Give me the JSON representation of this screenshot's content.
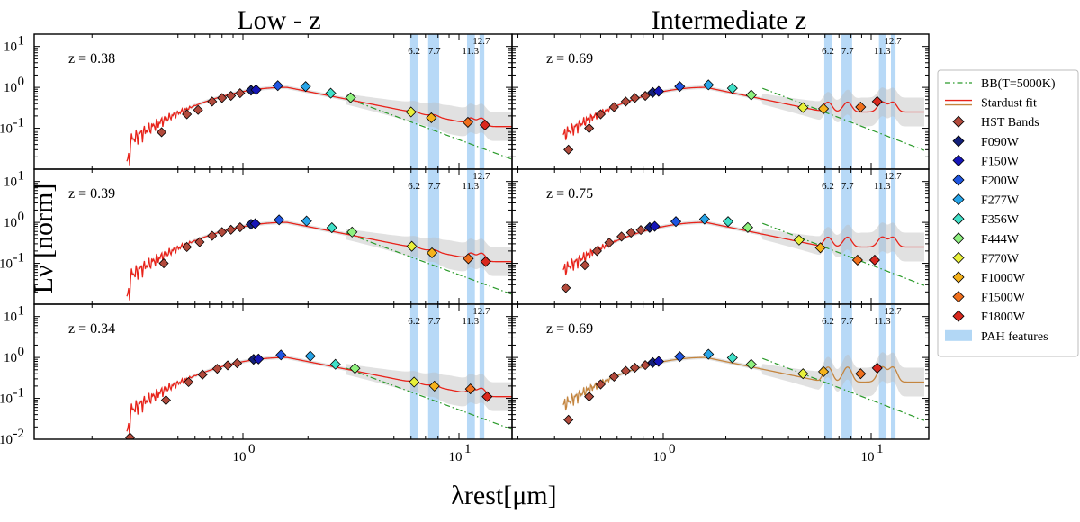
{
  "chart_data": {
    "type": "line",
    "x_scale": "log",
    "y_scale": "log",
    "xlim": [
      0.2,
      18
    ],
    "ylim": [
      0.01,
      20
    ],
    "column_titles": [
      "Low - z",
      "Intermediate z"
    ],
    "ylabel": "Lν [norm]",
    "xlabel": "λrest[μm]",
    "x_tick_labels": [
      {
        "value": 1,
        "label": "10^0"
      },
      {
        "value": 10,
        "label": "10^1"
      }
    ],
    "y_tick_labels": [
      {
        "value": 0.01,
        "label": "10^-2"
      },
      {
        "value": 0.1,
        "label": "10^-1"
      },
      {
        "value": 1,
        "label": "10^0"
      },
      {
        "value": 10,
        "label": "10^1"
      }
    ],
    "pah_features": [
      {
        "center": 6.2,
        "range": [
          5.95,
          6.45
        ],
        "label": "6.2"
      },
      {
        "center": 7.7,
        "range": [
          7.2,
          8.1
        ],
        "label": "7.7"
      },
      {
        "center": 11.3,
        "range": [
          10.9,
          11.85
        ],
        "label": "11.3"
      },
      {
        "center": 12.7,
        "range": [
          12.45,
          13.1
        ],
        "label": "12.7"
      }
    ],
    "bands": [
      {
        "name": "F090W",
        "color": "#13207a"
      },
      {
        "name": "F150W",
        "color": "#1616b8"
      },
      {
        "name": "F200W",
        "color": "#1f55e0"
      },
      {
        "name": "F277W",
        "color": "#27a4e8"
      },
      {
        "name": "F356W",
        "color": "#40e0c8"
      },
      {
        "name": "F444W",
        "color": "#8ef07e"
      },
      {
        "name": "F770W",
        "color": "#e8f03a"
      },
      {
        "name": "F1000W",
        "color": "#f5b21b"
      },
      {
        "name": "F1500W",
        "color": "#f0701e"
      },
      {
        "name": "F1800W",
        "color": "#d8281e"
      }
    ],
    "hst_color": "#b24a3c",
    "panels": [
      {
        "row": 0,
        "col": 0,
        "z": "z = 0.38",
        "fit_color": "#e8231a",
        "hst": [
          [
            0.42,
            0.08
          ],
          [
            0.55,
            0.22
          ],
          [
            0.62,
            0.28
          ],
          [
            0.72,
            0.45
          ],
          [
            0.8,
            0.55
          ],
          [
            0.88,
            0.62
          ],
          [
            0.97,
            0.72
          ]
        ],
        "jwst": [
          [
            1.09,
            0.85
          ],
          [
            1.15,
            0.87
          ],
          [
            1.45,
            1.1
          ],
          [
            1.95,
            1.05
          ],
          [
            2.55,
            0.72
          ],
          [
            3.15,
            0.56
          ],
          [
            6.0,
            0.25
          ],
          [
            7.45,
            0.18
          ],
          [
            11.0,
            0.14
          ],
          [
            13.2,
            0.12
          ]
        ]
      },
      {
        "row": 0,
        "col": 1,
        "z": "z = 0.69",
        "fit_color": "#e8231a",
        "hst": [
          [
            0.35,
            0.03
          ],
          [
            0.44,
            0.1
          ],
          [
            0.5,
            0.22
          ],
          [
            0.58,
            0.33
          ],
          [
            0.66,
            0.45
          ],
          [
            0.73,
            0.55
          ],
          [
            0.82,
            0.62
          ]
        ],
        "jwst": [
          [
            0.89,
            0.75
          ],
          [
            0.95,
            0.8
          ],
          [
            1.2,
            1.05
          ],
          [
            1.65,
            1.15
          ],
          [
            2.15,
            0.95
          ],
          [
            2.65,
            0.65
          ],
          [
            4.7,
            0.32
          ],
          [
            5.9,
            0.3
          ],
          [
            8.9,
            0.33
          ],
          [
            10.7,
            0.45
          ]
        ]
      },
      {
        "row": 1,
        "col": 0,
        "z": "z = 0.39",
        "fit_color": "#e8231a",
        "hst": [
          [
            0.43,
            0.1
          ],
          [
            0.55,
            0.25
          ],
          [
            0.63,
            0.33
          ],
          [
            0.72,
            0.47
          ],
          [
            0.8,
            0.58
          ],
          [
            0.88,
            0.66
          ],
          [
            0.97,
            0.76
          ]
        ],
        "jwst": [
          [
            1.09,
            0.9
          ],
          [
            1.14,
            0.93
          ],
          [
            1.47,
            1.15
          ],
          [
            1.97,
            1.08
          ],
          [
            2.58,
            0.74
          ],
          [
            3.2,
            0.58
          ],
          [
            6.05,
            0.26
          ],
          [
            7.5,
            0.18
          ],
          [
            11.05,
            0.13
          ],
          [
            13.3,
            0.11
          ]
        ]
      },
      {
        "row": 1,
        "col": 1,
        "z": "z = 0.75",
        "fit_color": "#e8231a",
        "hst": [
          [
            0.34,
            0.025
          ],
          [
            0.42,
            0.09
          ],
          [
            0.48,
            0.2
          ],
          [
            0.55,
            0.32
          ],
          [
            0.63,
            0.45
          ],
          [
            0.7,
            0.56
          ],
          [
            0.78,
            0.65
          ]
        ],
        "jwst": [
          [
            0.86,
            0.75
          ],
          [
            0.91,
            0.8
          ],
          [
            1.15,
            1.05
          ],
          [
            1.58,
            1.2
          ],
          [
            2.05,
            1.05
          ],
          [
            2.55,
            0.75
          ],
          [
            4.5,
            0.37
          ],
          [
            5.7,
            0.24
          ],
          [
            8.6,
            0.12
          ],
          [
            10.4,
            0.12
          ]
        ]
      },
      {
        "row": 2,
        "col": 0,
        "z": "z = 0.34",
        "fit_color": "#e8231a",
        "hst": [
          [
            0.3,
            0.011
          ],
          [
            0.44,
            0.09
          ],
          [
            0.56,
            0.25
          ],
          [
            0.65,
            0.38
          ],
          [
            0.76,
            0.53
          ],
          [
            0.85,
            0.64
          ],
          [
            0.94,
            0.72
          ]
        ],
        "jwst": [
          [
            1.12,
            0.9
          ],
          [
            1.18,
            0.92
          ],
          [
            1.5,
            1.15
          ],
          [
            2.05,
            1.08
          ],
          [
            2.68,
            0.68
          ],
          [
            3.3,
            0.54
          ],
          [
            6.2,
            0.25
          ],
          [
            7.7,
            0.2
          ],
          [
            11.3,
            0.17
          ],
          [
            13.5,
            0.11
          ]
        ]
      },
      {
        "row": 2,
        "col": 1,
        "z": "z = 0.69",
        "fit_color": "#c4853f",
        "hst": [
          [
            0.35,
            0.03
          ],
          [
            0.44,
            0.11
          ],
          [
            0.5,
            0.22
          ],
          [
            0.58,
            0.34
          ],
          [
            0.66,
            0.47
          ],
          [
            0.73,
            0.56
          ],
          [
            0.82,
            0.65
          ]
        ],
        "jwst": [
          [
            0.89,
            0.75
          ],
          [
            0.95,
            0.8
          ],
          [
            1.2,
            1.05
          ],
          [
            1.65,
            1.2
          ],
          [
            2.15,
            0.98
          ],
          [
            2.65,
            0.68
          ],
          [
            4.7,
            0.4
          ],
          [
            5.9,
            0.45
          ],
          [
            8.9,
            0.4
          ],
          [
            10.7,
            0.55
          ]
        ]
      }
    ],
    "legend": {
      "placement": "right",
      "entries": [
        {
          "label": "BB(T=5000K)",
          "kind": "dashdot",
          "color": "#2a9a2a"
        },
        {
          "label": "Stardust fit",
          "kind": "lines",
          "color": "#e8231a",
          "color2": "#c4853f"
        },
        {
          "label": "HST Bands",
          "kind": "diamond",
          "color": "#b24a3c"
        },
        {
          "label": "F090W",
          "kind": "diamond",
          "color": "#13207a"
        },
        {
          "label": "F150W",
          "kind": "diamond",
          "color": "#1616b8"
        },
        {
          "label": "F200W",
          "kind": "diamond",
          "color": "#1f55e0"
        },
        {
          "label": "F277W",
          "kind": "diamond",
          "color": "#27a4e8"
        },
        {
          "label": "F356W",
          "kind": "diamond",
          "color": "#40e0c8"
        },
        {
          "label": "F444W",
          "kind": "diamond",
          "color": "#8ef07e"
        },
        {
          "label": "F770W",
          "kind": "diamond",
          "color": "#e8f03a"
        },
        {
          "label": "F1000W",
          "kind": "diamond",
          "color": "#f5b21b"
        },
        {
          "label": "F1500W",
          "kind": "diamond",
          "color": "#f0701e"
        },
        {
          "label": "F1800W",
          "kind": "diamond",
          "color": "#d8281e"
        },
        {
          "label": "PAH features",
          "kind": "patch",
          "color": "#9fcdf2"
        }
      ]
    }
  }
}
